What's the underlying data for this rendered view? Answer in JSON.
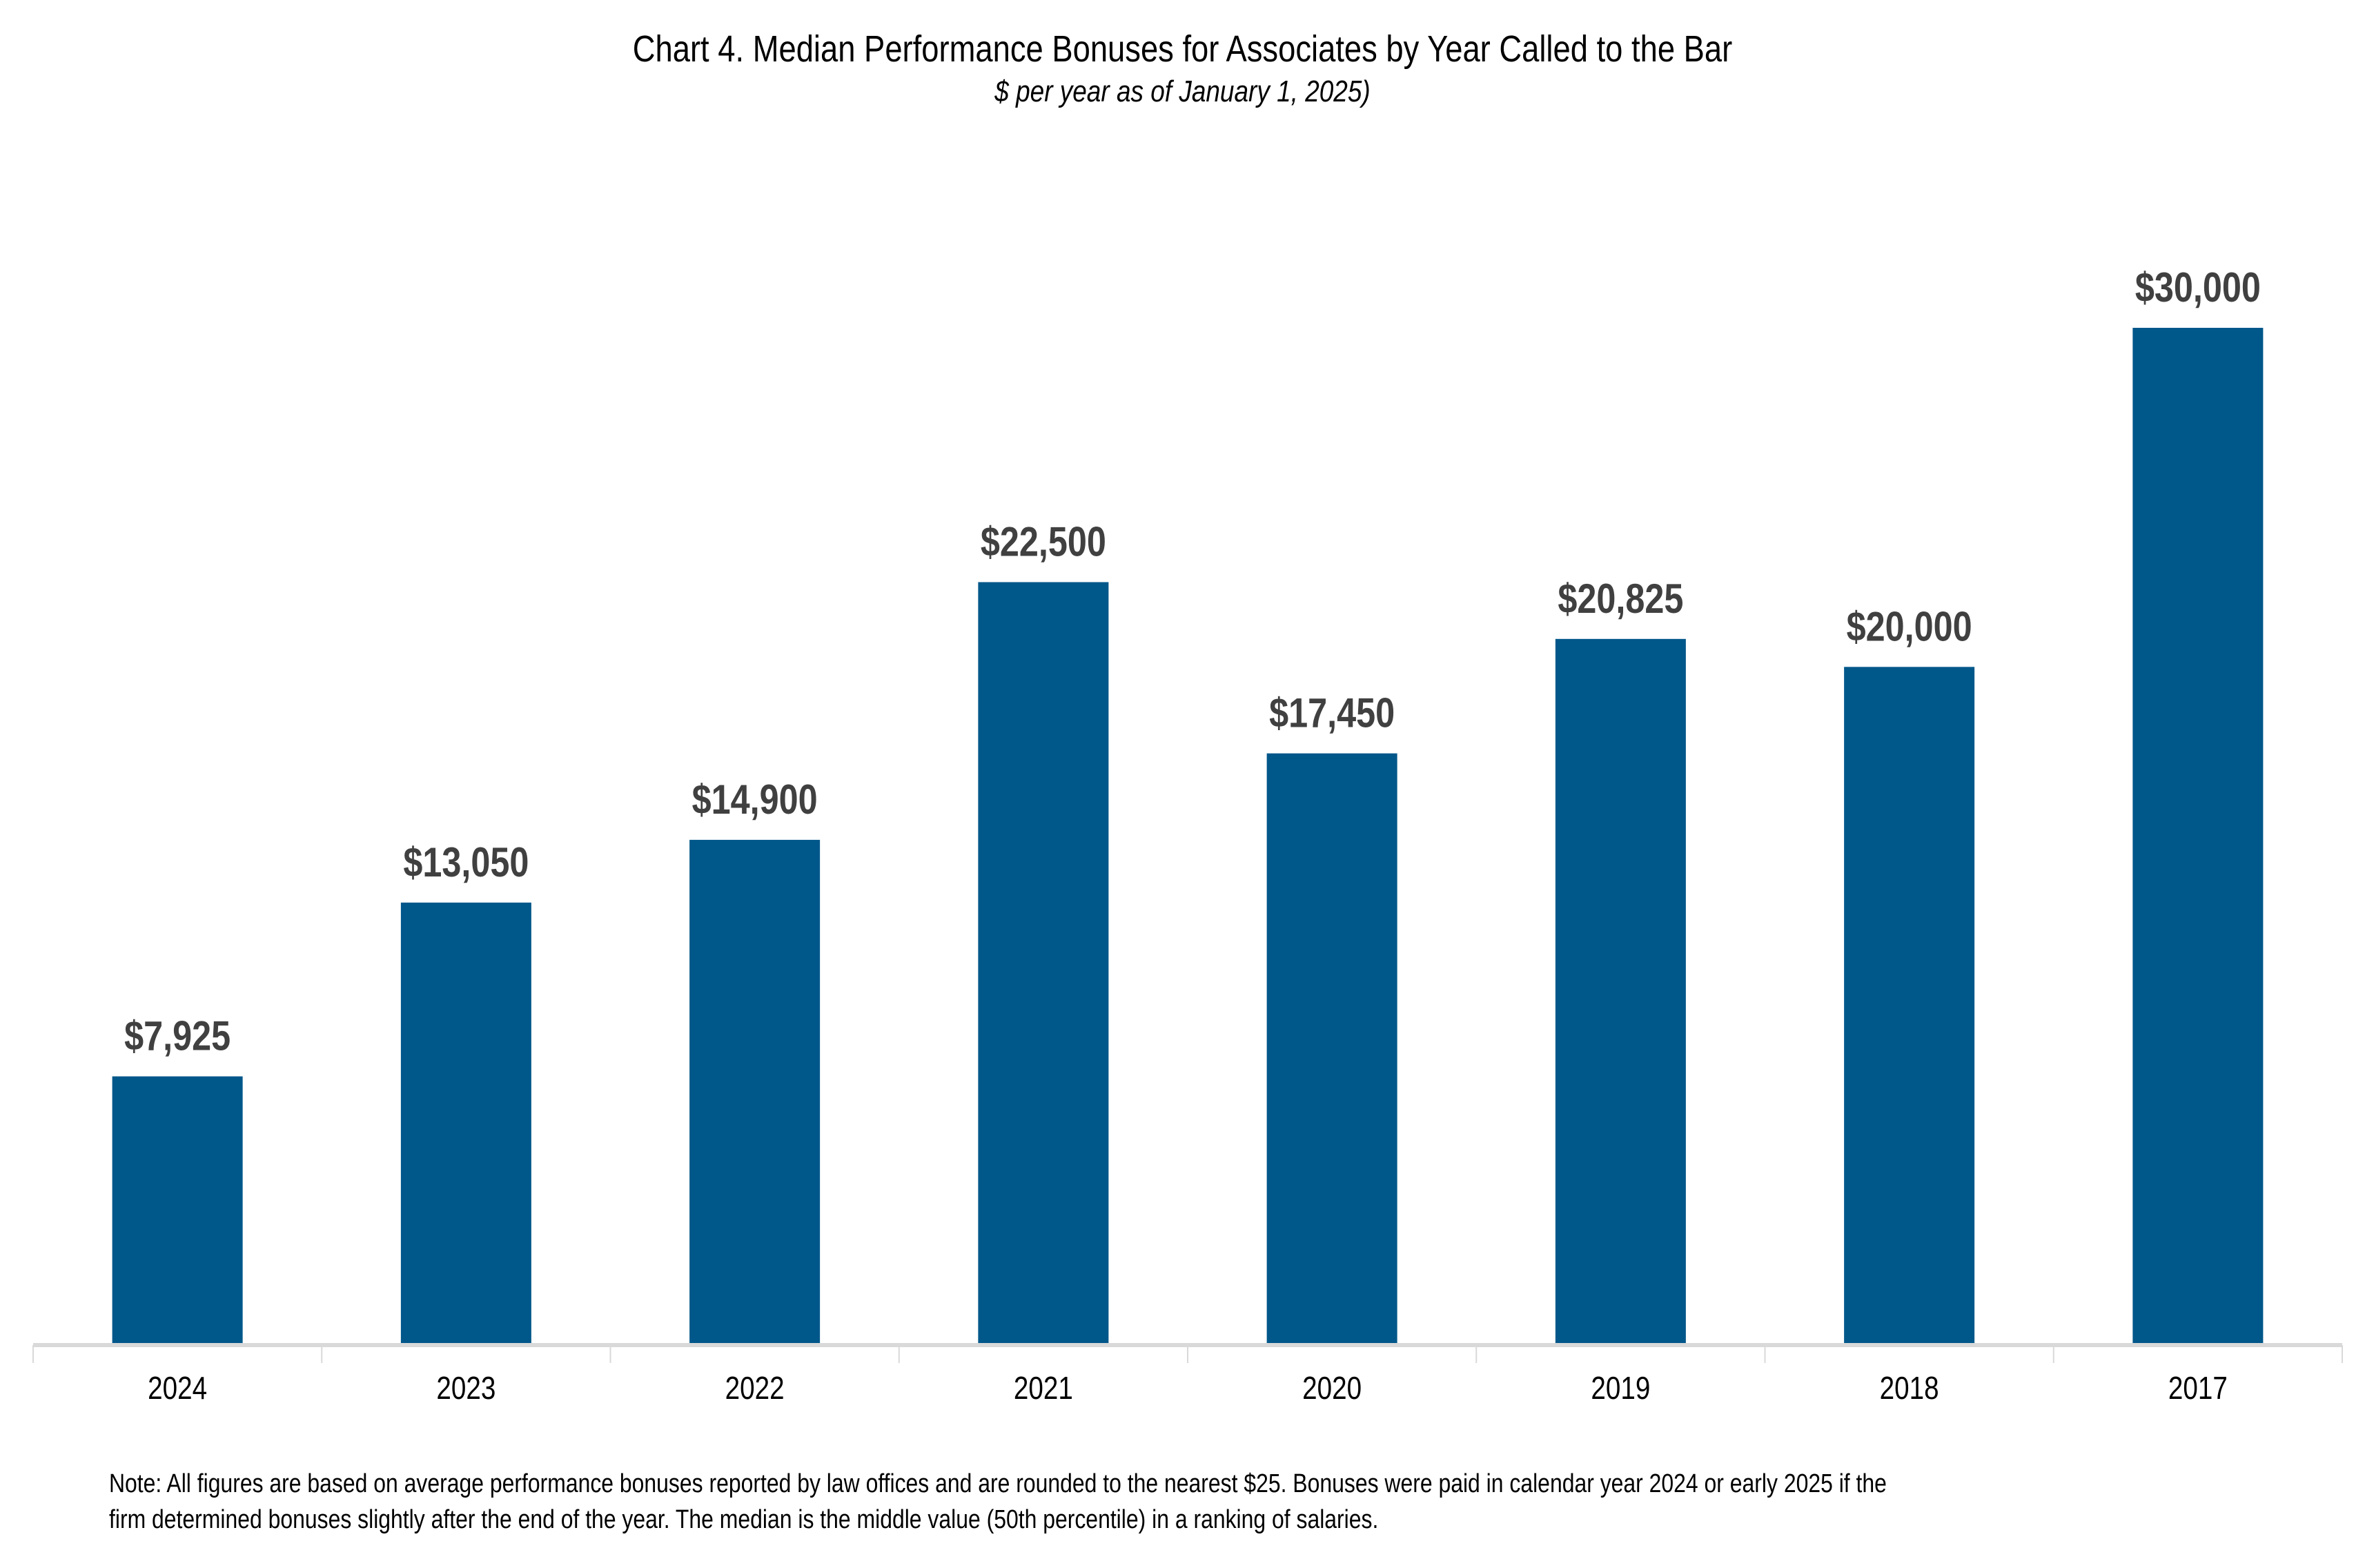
{
  "chart_data": {
    "type": "bar",
    "title": "Chart 4. Median Performance Bonuses for Associates by Year Called to the Bar",
    "subtitle": "$ per year as of January 1, 2025)",
    "xlabel": "",
    "ylabel": "",
    "categories": [
      "2024",
      "2023",
      "2022",
      "2021",
      "2020",
      "2019",
      "2018",
      "2017"
    ],
    "values": [
      7925,
      13050,
      14900,
      22500,
      17450,
      20825,
      20000,
      30000
    ],
    "data_labels": [
      "$7,925",
      "$13,050",
      "$14,900",
      "$22,500",
      "$17,450",
      "$20,825",
      "$20,000",
      "$30,000"
    ],
    "ylim": [
      0,
      30000
    ],
    "grid": false,
    "legend": "none",
    "bar_color": "#00578a",
    "axis_color": "#d9d9d9",
    "label_color": "#404040"
  },
  "note": {
    "line1": "Note: All figures are based on average performance bonuses reported by law offices and are rounded to the nearest $25. Bonuses were paid in calendar year 2024 or early 2025 if the",
    "line2": "firm determined bonuses slightly after the end of the year. The median is the middle value (50th percentile) in a ranking of salaries."
  }
}
